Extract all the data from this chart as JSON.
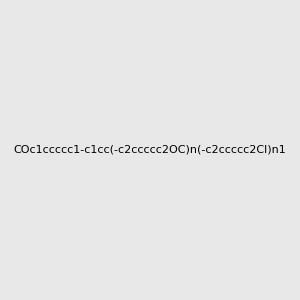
{
  "smiles": "COc1ccccc1-c1cc(-c2ccccc2OC)n(-c2ccccc2Cl)n1",
  "title": "",
  "background_color": "#e8e8e8",
  "bond_color": "#000000",
  "atom_colors": {
    "N": "#0000ff",
    "O": "#ff0000",
    "Cl": "#00aa00"
  },
  "figsize": [
    3.0,
    3.0
  ],
  "dpi": 100
}
